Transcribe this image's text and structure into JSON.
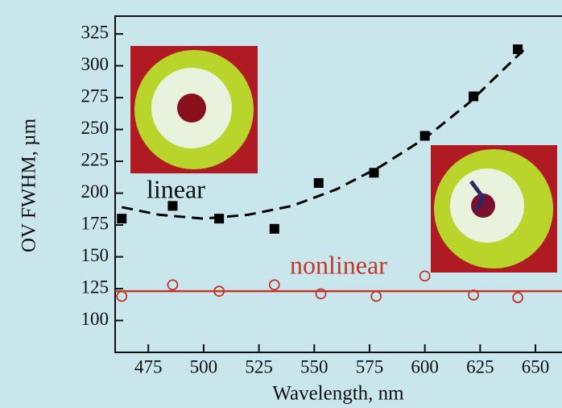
{
  "chart_data": {
    "type": "scatter",
    "x_label": "Wavelength, nm",
    "y_label": "OV FWHM, µm",
    "xlim": [
      460,
      662
    ],
    "ylim": [
      75,
      339
    ],
    "xticks": [
      475,
      500,
      525,
      550,
      575,
      600,
      625,
      650
    ],
    "yticks": [
      100,
      125,
      150,
      175,
      200,
      225,
      250,
      275,
      300,
      325
    ],
    "series": [
      {
        "name": "linear",
        "color": "#000000",
        "marker": "square",
        "x": [
          463,
          486,
          507,
          532,
          552,
          577,
          600,
          622,
          642
        ],
        "values": [
          180,
          190,
          180,
          172,
          208,
          216,
          245,
          276,
          313
        ]
      },
      {
        "name": "nonlinear",
        "color": "#c0392b",
        "marker": "circle",
        "x": [
          463,
          486,
          507,
          532,
          553,
          578,
          600,
          622,
          642
        ],
        "values": [
          119,
          128,
          123,
          128,
          121,
          119,
          135,
          120,
          118
        ]
      }
    ],
    "fits": [
      {
        "color": "#000000",
        "dash": true,
        "x": [
          463,
          480,
          500,
          520,
          540,
          560,
          580,
          600,
          620,
          645
        ],
        "values": [
          189,
          183,
          180,
          183,
          190,
          203,
          221,
          243,
          271,
          313
        ]
      },
      {
        "color": "#c0392b",
        "dash": false,
        "x": [
          460,
          662
        ],
        "values": [
          123,
          123
        ]
      }
    ]
  }
}
